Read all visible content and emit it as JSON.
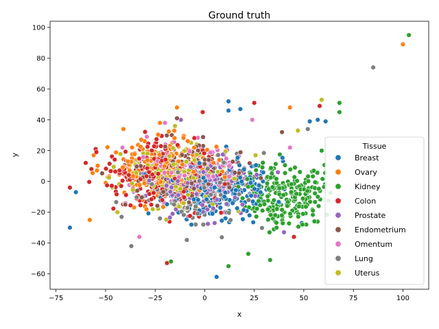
{
  "chart_data": {
    "type": "scatter",
    "title": "Ground truth",
    "xlabel": "x",
    "ylabel": "y",
    "xlim": [
      -78,
      113
    ],
    "ylim": [
      -70,
      104
    ],
    "xticks": [
      -75,
      -50,
      -25,
      0,
      25,
      50,
      75,
      100
    ],
    "yticks": [
      -60,
      -40,
      -20,
      0,
      20,
      40,
      60,
      80,
      100
    ],
    "xtick_labels": [
      "−75",
      "−50",
      "−25",
      "0",
      "25",
      "50",
      "75",
      "100"
    ],
    "ytick_labels": [
      "−60",
      "−40",
      "−20",
      "0",
      "20",
      "40",
      "60",
      "80",
      "100"
    ],
    "grid": false,
    "marker": "circle",
    "legend": {
      "title": "Tissue",
      "position": "right"
    },
    "series": [
      {
        "name": "Breast",
        "color": "#1f77b4",
        "center": [
          8,
          -4
        ],
        "spread": [
          18,
          13
        ],
        "count": 260,
        "seed": 11,
        "points": [
          [
            -68,
            -30
          ],
          [
            -65,
            -7
          ],
          [
            6,
            -62
          ],
          [
            12,
            52
          ],
          [
            18,
            47
          ],
          [
            12,
            46
          ],
          [
            49,
            -27
          ],
          [
            57,
            40
          ],
          [
            61,
            39
          ],
          [
            53,
            39
          ]
        ]
      },
      {
        "name": "Ovary",
        "color": "#ff7f0e",
        "center": [
          -22,
          8
        ],
        "spread": [
          17,
          13
        ],
        "count": 200,
        "seed": 23,
        "points": [
          [
            100,
            89
          ],
          [
            -58,
            -25
          ],
          [
            43,
            48
          ],
          [
            -14,
            48
          ],
          [
            -41,
            34
          ],
          [
            -56,
            17
          ]
        ]
      },
      {
        "name": "Kidney",
        "color": "#2ca02c",
        "center": [
          40,
          -8
        ],
        "spread": [
          13,
          14
        ],
        "count": 230,
        "seed": 37,
        "points": [
          [
            103,
            95
          ],
          [
            68,
            51
          ],
          [
            68,
            45
          ],
          [
            -17,
            -52
          ],
          [
            12,
            -55
          ],
          [
            22,
            -47
          ],
          [
            33,
            -51
          ],
          [
            55,
            7
          ],
          [
            59,
            20
          ]
        ]
      },
      {
        "name": "Colon",
        "color": "#d62728",
        "center": [
          -22,
          4
        ],
        "spread": [
          20,
          14
        ],
        "count": 240,
        "seed": 41,
        "points": [
          [
            -68,
            -4
          ],
          [
            -19,
            -53
          ],
          [
            -1,
            45
          ],
          [
            25,
            51
          ],
          [
            58,
            49
          ],
          [
            45,
            -36
          ],
          [
            -55,
            21
          ],
          [
            -60,
            12
          ]
        ]
      },
      {
        "name": "Prostate",
        "color": "#9467bd",
        "center": [
          0,
          -2
        ],
        "spread": [
          18,
          12
        ],
        "count": 150,
        "seed": 53,
        "points": [
          [
            5,
            -27
          ],
          [
            -12,
            40
          ],
          [
            40,
            -33
          ]
        ]
      },
      {
        "name": "Endometrium",
        "color": "#8c564b",
        "center": [
          -8,
          4
        ],
        "spread": [
          20,
          13
        ],
        "count": 130,
        "seed": 67,
        "points": [
          [
            39,
            32
          ],
          [
            -14,
            41
          ],
          [
            -40,
            -15
          ]
        ]
      },
      {
        "name": "Omentum",
        "color": "#e377c2",
        "center": [
          -8,
          6
        ],
        "spread": [
          20,
          13
        ],
        "count": 150,
        "seed": 71,
        "points": [
          [
            -20,
            38
          ],
          [
            24,
            40
          ],
          [
            43,
            22
          ],
          [
            -33,
            -36
          ]
        ]
      },
      {
        "name": "Lung",
        "color": "#7f7f7f",
        "center": [
          -5,
          -8
        ],
        "spread": [
          19,
          14
        ],
        "count": 110,
        "seed": 83,
        "points": [
          [
            85,
            74
          ],
          [
            -37,
            -42
          ],
          [
            -9,
            -38
          ],
          [
            52,
            34
          ]
        ]
      },
      {
        "name": "Uterus",
        "color": "#bcbd22",
        "center": [
          -18,
          4
        ],
        "spread": [
          19,
          13
        ],
        "count": 180,
        "seed": 97,
        "points": [
          [
            59,
            53
          ],
          [
            -15,
            36
          ],
          [
            47,
            33
          ],
          [
            -44,
            -20
          ]
        ]
      }
    ]
  }
}
